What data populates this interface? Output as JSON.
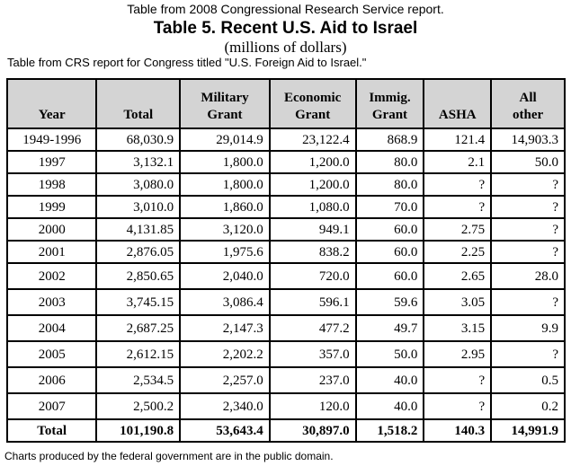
{
  "captions": {
    "top": "Table from 2008 Congressional Research Service report.",
    "title": "Table 5.  Recent U.S. Aid to Israel",
    "subtitle": "(millions of dollars)",
    "source": "Table from CRS report for Congress titled \"U.S. Foreign Aid to Israel.\"",
    "footer": "Charts produced by the federal government are in the public domain."
  },
  "colors": {
    "header_bg": "#d4d4d4",
    "border": "#000000"
  },
  "table": {
    "headers": [
      {
        "line1": "",
        "line2": "Year"
      },
      {
        "line1": "",
        "line2": "Total"
      },
      {
        "line1": "Military",
        "line2": "Grant"
      },
      {
        "line1": "Economic",
        "line2": "Grant"
      },
      {
        "line1": "Immig.",
        "line2": "Grant"
      },
      {
        "line1": "",
        "line2": "ASHA"
      },
      {
        "line1": "All",
        "line2": "other"
      }
    ],
    "rows": [
      [
        "1949-1996",
        "68,030.9",
        "29,014.9",
        "23,122.4",
        "868.9",
        "121.4",
        "14,903.3"
      ],
      [
        "1997",
        "3,132.1",
        "1,800.0",
        "1,200.0",
        "80.0",
        "2.1",
        "50.0"
      ],
      [
        "1998",
        "3,080.0",
        "1,800.0",
        "1,200.0",
        "80.0",
        "?",
        "?"
      ],
      [
        "1999",
        "3,010.0",
        "1,860.0",
        "1,080.0",
        "70.0",
        "?",
        "?"
      ],
      [
        "2000",
        "4,131.85",
        "3,120.0",
        "949.1",
        "60.0",
        "2.75",
        "?"
      ],
      [
        "2001",
        "2,876.05",
        "1,975.6",
        "838.2",
        "60.0",
        "2.25",
        "?"
      ],
      [
        "2002",
        "2,850.65",
        "2,040.0",
        "720.0",
        "60.0",
        "2.65",
        "28.0"
      ],
      [
        "2003",
        "3,745.15",
        "3,086.4",
        "596.1",
        "59.6",
        "3.05",
        "?"
      ],
      [
        "2004",
        "2,687.25",
        "2,147.3",
        "477.2",
        "49.7",
        "3.15",
        "9.9"
      ],
      [
        "2005",
        "2,612.15",
        "2,202.2",
        "357.0",
        "50.0",
        "2.95",
        "?"
      ],
      [
        "2006",
        "2,534.5",
        "2,257.0",
        "237.0",
        "40.0",
        "?",
        "0.5"
      ],
      [
        "2007",
        "2,500.2",
        "2,340.0",
        "120.0",
        "40.0",
        "?",
        "0.2"
      ]
    ],
    "total": [
      "Total",
      "101,190.8",
      "53,643.4",
      "30,897.0",
      "1,518.2",
      "140.3",
      "14,991.9"
    ]
  }
}
